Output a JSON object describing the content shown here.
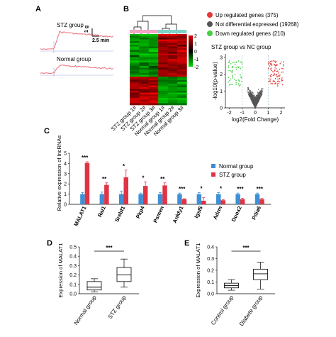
{
  "panel_labels": {
    "a": "A",
    "b": "B",
    "c": "C",
    "d": "D",
    "e": "E"
  },
  "colors": {
    "normal": "#3d8fd6",
    "stz": "#e03344",
    "trace": "#e8606f",
    "up": "#e53935",
    "notdiff": "#555555",
    "down": "#43d043",
    "heat_high": "#e00000",
    "heat_low": "#00dd00"
  },
  "panelA": {
    "stz_label": "STZ group",
    "normal_label": "Normal group",
    "scale_y": "1 g",
    "scale_x": "2.5 min"
  },
  "chart_data": [
    {
      "type": "heatmap",
      "panel": "B",
      "x_labels": [
        "STZ group 1#",
        "STZ group 2#",
        "STZ group 3#",
        "Normal group 1#",
        "Normal group 2#",
        "Normal group 3#"
      ],
      "colorbar_ticks": [
        "2",
        "1",
        "0",
        "-1",
        "-2"
      ],
      "legend": [
        {
          "label": "Up regulated genes (375)",
          "color": "#e53935"
        },
        {
          "label": "Not differential expressed (19268)",
          "color": "#555555"
        },
        {
          "label": "Down regulated genes (210)",
          "color": "#43d043"
        }
      ]
    },
    {
      "type": "scatter",
      "panel": "B",
      "title": "STZ group vs NC group",
      "xlabel": "log2(Fold Change)",
      "ylabel": "-log10(p-value)",
      "xlim": [
        -2.3,
        2.3
      ],
      "ylim": [
        0,
        3.2
      ],
      "x_ticks": [
        -2,
        -1,
        0,
        1,
        2
      ],
      "y_ticks": [
        0,
        1,
        2,
        3
      ]
    },
    {
      "type": "bar",
      "panel": "C",
      "ylabel": "Relative expression of lncRNAs",
      "ylim": [
        0,
        5
      ],
      "y_ticks": [
        0,
        1,
        2,
        3,
        4,
        5
      ],
      "categories": [
        "MALAT1",
        "Rai1",
        "Srebf1",
        "Pkp4",
        "Psmen",
        "Ankfy1",
        "Igsf5",
        "Adrm",
        "Duox2",
        "Pdia6"
      ],
      "series": [
        {
          "name": "Normal group",
          "values": [
            1.0,
            1.0,
            1.0,
            1.0,
            1.0,
            1.0,
            1.0,
            1.0,
            1.0,
            1.0
          ],
          "errors": [
            0.15,
            0.2,
            0.3,
            0.1,
            0.15,
            0.1,
            0.15,
            0.15,
            0.1,
            0.1
          ]
        },
        {
          "name": "STZ group",
          "values": [
            4.05,
            1.9,
            2.65,
            1.8,
            1.85,
            0.5,
            0.35,
            0.4,
            0.5,
            0.5
          ],
          "errors": [
            0.12,
            0.2,
            0.7,
            0.4,
            0.25,
            0.05,
            0.3,
            0.05,
            0.1,
            0.08
          ]
        }
      ],
      "significance": [
        "***",
        "**",
        "*",
        "*",
        "**",
        "***",
        "*",
        "*",
        "***",
        "***"
      ]
    },
    {
      "type": "box",
      "panel": "D",
      "ylabel": "Expression of MALAT1",
      "ylim": [
        0,
        0.5
      ],
      "y_ticks": [
        0.0,
        0.1,
        0.2,
        0.3,
        0.4,
        0.5
      ],
      "categories": [
        "Normal group",
        "STZ group"
      ],
      "boxes": [
        {
          "min": 0.02,
          "q1": 0.04,
          "median": 0.07,
          "q3": 0.13,
          "max": 0.16
        },
        {
          "min": 0.07,
          "q1": 0.13,
          "median": 0.2,
          "q3": 0.28,
          "max": 0.37
        }
      ],
      "significance": "***"
    },
    {
      "type": "box",
      "panel": "E",
      "ylabel": "Expression of MALAT1",
      "ylim": [
        0,
        0.4
      ],
      "y_ticks": [
        0.0,
        0.1,
        0.2,
        0.3,
        0.4
      ],
      "categories": [
        "Control group",
        "Diabete group"
      ],
      "boxes": [
        {
          "min": 0.03,
          "q1": 0.05,
          "median": 0.07,
          "q3": 0.09,
          "max": 0.12
        },
        {
          "min": 0.04,
          "q1": 0.12,
          "median": 0.17,
          "q3": 0.21,
          "max": 0.27
        }
      ],
      "significance": "***"
    }
  ]
}
